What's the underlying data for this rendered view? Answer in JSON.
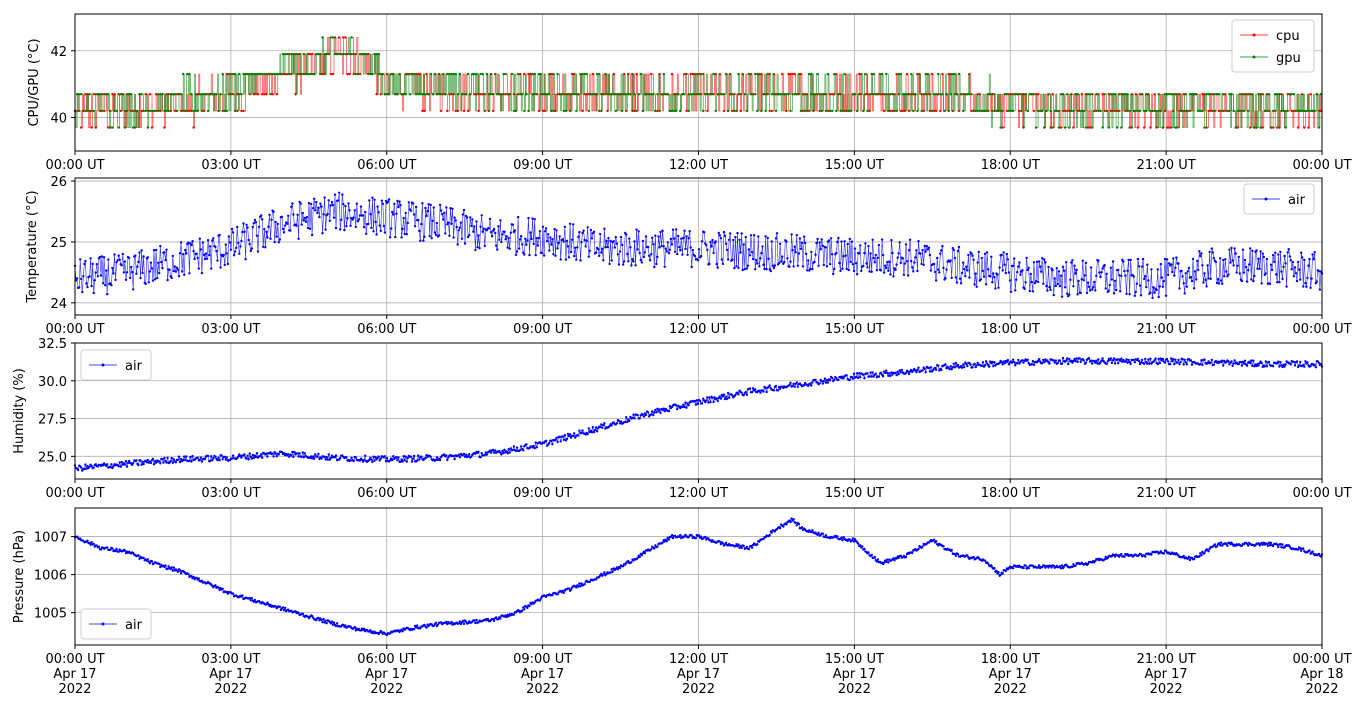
{
  "chart_data": [
    {
      "type": "line",
      "ylabel": "CPU/GPU (°C)",
      "xlim": [
        "2022-04-17T00:00Z",
        "2022-04-18T00:00Z"
      ],
      "ylim": [
        39.0,
        43.1
      ],
      "y_ticks": [
        "40",
        "42"
      ],
      "x_ticks": [
        "00:00 UT",
        "03:00 UT",
        "06:00 UT",
        "09:00 UT",
        "12:00 UT",
        "15:00 UT",
        "18:00 UT",
        "21:00 UT",
        "00:00 UT"
      ],
      "grid": true,
      "legend": "upper right",
      "series": [
        {
          "name": "cpu",
          "color": "#ff0000",
          "x": [
            0,
            1,
            2,
            3,
            3.5,
            4,
            4.5,
            5,
            5.5,
            6,
            7,
            8,
            9,
            10,
            11,
            12,
            13,
            14,
            15,
            16,
            17,
            18,
            19,
            20,
            21,
            22,
            23,
            24
          ],
          "values": [
            40.2,
            40.3,
            40.4,
            40.7,
            41.0,
            41.3,
            41.5,
            41.9,
            41.8,
            41.0,
            40.8,
            40.8,
            40.7,
            40.7,
            40.7,
            40.7,
            40.7,
            40.7,
            40.7,
            40.7,
            40.6,
            40.4,
            40.3,
            40.3,
            40.3,
            40.3,
            40.3,
            40.3
          ]
        },
        {
          "name": "gpu",
          "color": "#008000",
          "x": [
            0,
            1,
            2,
            3,
            3.5,
            4,
            4.5,
            5,
            5.5,
            6,
            7,
            8,
            9,
            10,
            11,
            12,
            13,
            14,
            15,
            16,
            17,
            18,
            19,
            20,
            21,
            22,
            23,
            24
          ],
          "values": [
            40.3,
            40.4,
            40.5,
            40.8,
            41.1,
            41.3,
            41.6,
            41.9,
            41.9,
            41.1,
            41.0,
            40.8,
            40.8,
            40.7,
            40.7,
            40.7,
            40.7,
            40.7,
            40.7,
            40.8,
            40.6,
            40.4,
            40.3,
            40.3,
            40.3,
            40.4,
            40.3,
            40.4
          ]
        }
      ]
    },
    {
      "type": "line",
      "ylabel": "Temperature (°C)",
      "xlim": [
        "2022-04-17T00:00Z",
        "2022-04-18T00:00Z"
      ],
      "ylim": [
        23.8,
        26.05
      ],
      "y_ticks": [
        "24",
        "25",
        "26"
      ],
      "x_ticks": [
        "00:00 UT",
        "03:00 UT",
        "06:00 UT",
        "09:00 UT",
        "12:00 UT",
        "15:00 UT",
        "18:00 UT",
        "21:00 UT",
        "00:00 UT"
      ],
      "grid": true,
      "legend": "upper right",
      "series": [
        {
          "name": "air",
          "color": "#0000ff",
          "x": [
            0,
            1,
            2,
            3,
            4,
            5,
            6,
            7,
            8,
            9,
            10,
            11,
            12,
            13,
            14,
            15,
            16,
            17,
            18,
            19,
            20,
            21,
            22,
            23,
            24
          ],
          "values": [
            24.4,
            24.5,
            24.7,
            24.9,
            25.3,
            25.5,
            25.4,
            25.3,
            25.1,
            25.1,
            24.9,
            24.9,
            24.9,
            24.85,
            24.8,
            24.75,
            24.75,
            24.6,
            24.5,
            24.4,
            24.4,
            24.4,
            24.6,
            24.6,
            24.5
          ]
        }
      ]
    },
    {
      "type": "line",
      "ylabel": "Humidity (%)",
      "xlim": [
        "2022-04-17T00:00Z",
        "2022-04-18T00:00Z"
      ],
      "ylim": [
        23.5,
        32.5
      ],
      "y_ticks": [
        "25.0",
        "27.5",
        "30.0",
        "32.5"
      ],
      "x_ticks": [
        "00:00 UT",
        "03:00 UT",
        "06:00 UT",
        "09:00 UT",
        "12:00 UT",
        "15:00 UT",
        "18:00 UT",
        "21:00 UT",
        "00:00 UT"
      ],
      "grid": true,
      "legend": "upper left",
      "series": [
        {
          "name": "air",
          "color": "#0000ff",
          "x": [
            0,
            1,
            2,
            3,
            4,
            5,
            6,
            7,
            8,
            9,
            10,
            11,
            12,
            13,
            14,
            15,
            16,
            17,
            18,
            19,
            20,
            21,
            22,
            23,
            24
          ],
          "values": [
            24.2,
            24.5,
            24.8,
            24.9,
            25.2,
            24.9,
            24.8,
            24.9,
            25.2,
            25.8,
            26.8,
            27.8,
            28.6,
            29.3,
            29.8,
            30.3,
            30.6,
            31.0,
            31.2,
            31.3,
            31.3,
            31.3,
            31.2,
            31.1,
            31.1
          ]
        }
      ]
    },
    {
      "type": "line",
      "ylabel": "Pressure (hPa)",
      "xlim": [
        "2022-04-17T00:00Z",
        "2022-04-18T00:00Z"
      ],
      "ylim": [
        1004.15,
        1007.75
      ],
      "y_ticks": [
        "1005",
        "1006",
        "1007"
      ],
      "x_ticks": [
        "00:00 UT\nApr 17\n2022",
        "03:00 UT\nApr 17\n2022",
        "06:00 UT\nApr 17\n2022",
        "09:00 UT\nApr 17\n2022",
        "12:00 UT\nApr 17\n2022",
        "15:00 UT\nApr 17\n2022",
        "18:00 UT\nApr 17\n2022",
        "21:00 UT\nApr 17\n2022",
        "00:00 UT\nApr 18\n2022"
      ],
      "grid": true,
      "legend": "lower left",
      "series": [
        {
          "name": "air",
          "color": "#0000ff",
          "x": [
            0,
            0.5,
            1,
            1.5,
            2,
            2.5,
            3,
            3.5,
            4,
            4.5,
            5,
            5.5,
            6,
            6.5,
            7,
            7.5,
            8,
            8.5,
            9,
            9.5,
            10,
            10.5,
            11,
            11.5,
            12,
            12.5,
            13,
            13.5,
            13.8,
            14,
            14.5,
            15,
            15.5,
            16,
            16.5,
            17,
            17.5,
            17.8,
            18,
            18.5,
            19,
            19.5,
            20,
            20.5,
            21,
            21.5,
            22,
            22.5,
            23,
            23.5,
            24
          ],
          "values": [
            1007.0,
            1006.7,
            1006.6,
            1006.3,
            1006.1,
            1005.8,
            1005.5,
            1005.3,
            1005.1,
            1004.9,
            1004.7,
            1004.55,
            1004.45,
            1004.6,
            1004.7,
            1004.75,
            1004.8,
            1005.0,
            1005.4,
            1005.6,
            1005.9,
            1006.2,
            1006.6,
            1007.0,
            1007.0,
            1006.8,
            1006.7,
            1007.2,
            1007.45,
            1007.2,
            1007.0,
            1006.9,
            1006.3,
            1006.5,
            1006.9,
            1006.5,
            1006.4,
            1006.0,
            1006.2,
            1006.2,
            1006.2,
            1006.3,
            1006.5,
            1006.5,
            1006.6,
            1006.4,
            1006.8,
            1006.8,
            1006.8,
            1006.7,
            1006.5
          ]
        }
      ]
    }
  ]
}
